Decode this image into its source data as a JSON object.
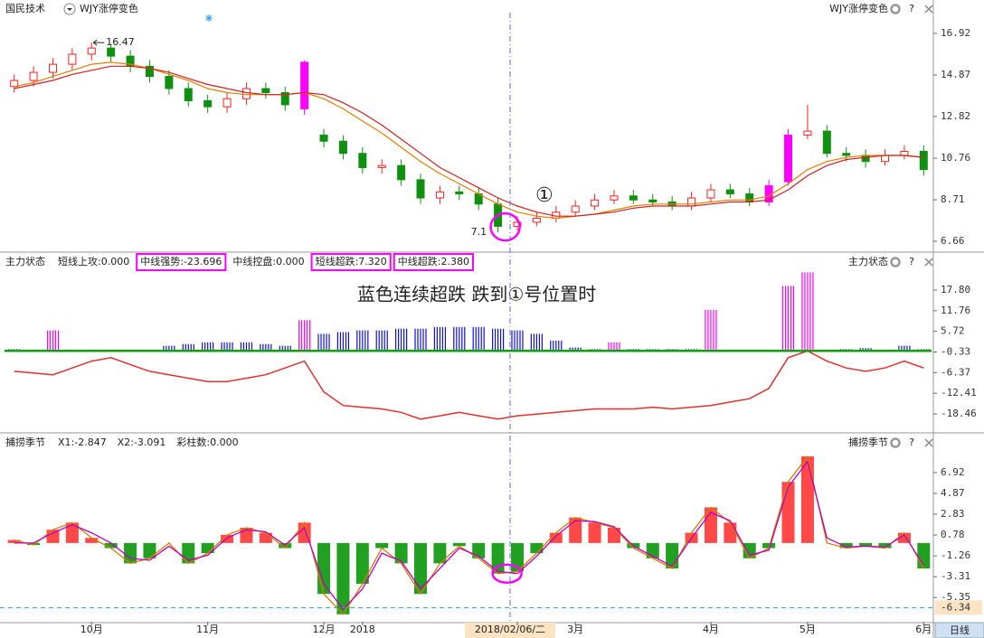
{
  "chart_data": [
    {
      "type": "candlestick",
      "title": "国民技术",
      "indicator": "WJY涨停变色",
      "categories": [
        null,
        null,
        null,
        null,
        "10月",
        null,
        null,
        null,
        null,
        null,
        "11月",
        null,
        null,
        null,
        null,
        null,
        "12月",
        null,
        "2018",
        null,
        null,
        null,
        null,
        null,
        null,
        null,
        "2018/02/06/二",
        null,
        null,
        "3月",
        null,
        null,
        null,
        null,
        null,
        null,
        "4月",
        null,
        null,
        null,
        null,
        "5月",
        null,
        null,
        null,
        null,
        null,
        "6月"
      ],
      "open": [
        14.3,
        14.6,
        15.0,
        15.4,
        15.9,
        16.2,
        15.8,
        15.3,
        14.8,
        14.2,
        13.6,
        13.3,
        13.7,
        14.2,
        14.0,
        13.2,
        11.9,
        11.6,
        11.0,
        10.3,
        10.4,
        9.7,
        8.8,
        9.1,
        9.0,
        8.5,
        7.4,
        7.6,
        7.8,
        8.1,
        8.4,
        8.7,
        8.9,
        8.7,
        8.6,
        8.4,
        8.8,
        9.2,
        9.0,
        8.6,
        9.6,
        11.9,
        12.1,
        11.0,
        10.9,
        10.6,
        10.9,
        11.1
      ],
      "high": [
        14.9,
        15.3,
        15.7,
        16.2,
        16.47,
        16.4,
        16.1,
        15.6,
        15.1,
        14.5,
        13.9,
        14.0,
        14.5,
        14.5,
        14.3,
        15.6,
        12.2,
        11.9,
        11.3,
        10.7,
        10.7,
        10.0,
        9.4,
        9.4,
        9.3,
        8.8,
        7.9,
        8.1,
        8.4,
        8.7,
        9.0,
        9.2,
        9.2,
        9.0,
        8.9,
        9.1,
        9.5,
        9.5,
        9.3,
        9.7,
        12.2,
        13.4,
        12.4,
        11.3,
        11.2,
        11.2,
        11.4,
        11.4
      ],
      "low": [
        14.0,
        14.3,
        14.7,
        15.1,
        15.6,
        15.5,
        15.0,
        14.5,
        13.9,
        13.3,
        13.0,
        13.0,
        13.4,
        13.7,
        13.1,
        12.9,
        11.3,
        10.7,
        10.0,
        10.0,
        9.4,
        8.5,
        8.5,
        8.7,
        8.2,
        7.1,
        7.2,
        7.4,
        7.6,
        7.9,
        8.2,
        8.5,
        8.5,
        8.4,
        8.2,
        8.2,
        8.6,
        8.8,
        8.4,
        8.4,
        9.4,
        11.7,
        10.8,
        10.6,
        10.3,
        10.4,
        10.7,
        9.9
      ],
      "close": [
        14.6,
        15.0,
        15.4,
        15.9,
        16.2,
        15.8,
        15.3,
        14.8,
        14.2,
        13.6,
        13.3,
        13.7,
        14.2,
        14.0,
        13.4,
        15.5,
        11.6,
        11.0,
        10.3,
        10.4,
        9.7,
        8.8,
        9.1,
        9.0,
        8.5,
        7.4,
        7.6,
        7.8,
        8.1,
        8.4,
        8.7,
        8.9,
        8.7,
        8.6,
        8.4,
        8.8,
        9.2,
        9.0,
        8.6,
        9.4,
        11.9,
        12.1,
        11.0,
        10.9,
        10.6,
        10.9,
        11.1,
        10.2
      ],
      "limit_up_indices": [
        15,
        39,
        40
      ],
      "up_color": "#ff2020",
      "down_color": "#109010",
      "limit_color": "#ff00ff",
      "series": [
        {
          "color": "#e08000",
          "values": [
            14.3,
            14.5,
            14.8,
            15.1,
            15.4,
            15.5,
            15.4,
            15.2,
            14.9,
            14.6,
            14.2,
            14.0,
            13.9,
            13.9,
            13.9,
            14.0,
            13.7,
            13.2,
            12.6,
            12.0,
            11.3,
            10.6,
            10.0,
            9.5,
            9.0,
            8.5,
            8.1,
            7.9,
            7.8,
            7.9,
            8.0,
            8.2,
            8.4,
            8.5,
            8.5,
            8.5,
            8.6,
            8.7,
            8.7,
            8.9,
            9.5,
            10.2,
            10.6,
            10.8,
            10.9,
            10.9,
            10.9,
            10.8
          ]
        },
        {
          "color": "#d02020",
          "values": [
            14.2,
            14.4,
            14.6,
            14.9,
            15.1,
            15.3,
            15.3,
            15.2,
            15.0,
            14.7,
            14.4,
            14.2,
            14.0,
            13.9,
            13.9,
            14.0,
            13.9,
            13.5,
            13.0,
            12.4,
            11.7,
            11.0,
            10.3,
            9.8,
            9.3,
            8.8,
            8.4,
            8.1,
            7.9,
            7.9,
            8.0,
            8.1,
            8.3,
            8.4,
            8.4,
            8.4,
            8.5,
            8.6,
            8.6,
            8.7,
            9.2,
            9.9,
            10.4,
            10.7,
            10.8,
            10.9,
            10.9,
            10.8
          ]
        }
      ],
      "ylim": [
        6.17,
        17.68
      ],
      "yticks": [
        16.92,
        14.87,
        12.82,
        10.76,
        8.71,
        6.66
      ],
      "annotations": [
        "16.47",
        "7.1",
        "①"
      ]
    },
    {
      "type": "indicator",
      "title": "主力状态",
      "legend": [
        {
          "text": "短线上攻:0.000",
          "color": "#e000e0",
          "boxed": false
        },
        {
          "text": "中线强势:-23.696",
          "color": "#e03030",
          "boxed": true
        },
        {
          "text": "中线控盘:0.000",
          "color": "#c08000",
          "boxed": false
        },
        {
          "text": "短线超跌:7.320",
          "color": "#0000d0",
          "boxed": true
        },
        {
          "text": "中线超跌:2.380",
          "color": "#10a010",
          "boxed": true
        }
      ],
      "series": [
        {
          "style": "bar",
          "color": "#1010e0",
          "values": [
            0.5,
            0.3,
            0,
            0.3,
            0.2,
            0,
            0,
            0.3,
            1.5,
            2,
            2.5,
            2.5,
            2.5,
            2,
            1.5,
            0,
            5,
            5.5,
            6,
            6,
            6.5,
            6.5,
            7,
            7,
            7,
            6.5,
            6,
            5,
            3,
            1,
            0.5,
            0.5,
            0.5,
            0.5,
            0.5,
            0.5,
            0,
            0,
            0,
            0,
            0,
            0,
            0,
            0.5,
            0.8,
            0.3,
            1.5,
            0.5
          ]
        },
        {
          "style": "bar",
          "color": "#ff00ff",
          "values": [
            null,
            null,
            6,
            null,
            null,
            null,
            null,
            null,
            null,
            null,
            null,
            null,
            null,
            null,
            null,
            9,
            null,
            null,
            null,
            null,
            null,
            null,
            null,
            null,
            null,
            null,
            null,
            null,
            null,
            null,
            null,
            2.5,
            null,
            null,
            null,
            null,
            12,
            null,
            null,
            null,
            19,
            23,
            null,
            null,
            null,
            null,
            null,
            null
          ]
        },
        {
          "style": "line",
          "color": "#e03030",
          "values": [
            -6,
            -6.5,
            -7,
            -5,
            -3,
            -2,
            -4,
            -6,
            -7,
            -8,
            -9,
            -9,
            -8,
            -7,
            -5,
            -3,
            -12,
            -16,
            -16.5,
            -17,
            -18,
            -20,
            -19,
            -18,
            -19,
            -20,
            -19,
            -18.5,
            -18,
            -17.5,
            -17,
            -17,
            -17,
            -16.5,
            -17,
            -16.5,
            -16,
            -15,
            -14,
            -11,
            -2,
            0,
            -3,
            -5,
            -6,
            -5,
            -3,
            -5
          ]
        }
      ],
      "ylim": [
        -23.75,
        23.36
      ],
      "yticks": [
        {
          "value": 17.8,
          "label": "17.80"
        },
        11.76,
        5.72,
        -0.33,
        -6.37,
        -12.41,
        -18.46
      ],
      "annotation": "蓝色连续超跌  跌到①号位置时"
    },
    {
      "type": "histogram",
      "title": "捕捞季节",
      "legend": [
        {
          "text": "X1:-2.847",
          "color": "#d08000",
          "boxed": false
        },
        {
          "text": "X2:-3.091",
          "color": "#c000c0",
          "boxed": false
        },
        {
          "text": "彩柱数:0.000",
          "color": "#10a010",
          "boxed": false
        }
      ],
      "pos_color": "#ff4848",
      "neg_color": "#22a022",
      "series": [
        {
          "color": "#d08000",
          "values": [
            0.3,
            -0.2,
            1.3,
            2.0,
            0.5,
            -0.5,
            -2,
            -1.5,
            0,
            -2,
            -1,
            0.8,
            1.5,
            1.0,
            -0.5,
            2.0,
            -5,
            -7,
            -4,
            -0.5,
            -2,
            -5,
            -2,
            -0.3,
            -1.5,
            -3,
            -2.8,
            -1,
            1.0,
            2.5,
            2.0,
            1.5,
            -0.5,
            -1.5,
            -2.5,
            1.0,
            3.5,
            2.0,
            -1.5,
            -0.5,
            6,
            8.5,
            0,
            -0.5,
            -0.3,
            -0.5,
            1.0,
            -2.5
          ]
        },
        {
          "color": "#c000c0",
          "values": [
            0,
            0,
            1,
            1.8,
            1,
            0,
            -1.5,
            -1.7,
            -0.3,
            -1.7,
            -1.2,
            0.5,
            1.3,
            1.1,
            -0.2,
            1.5,
            -4,
            -6.5,
            -4.5,
            -1,
            -1.8,
            -4.5,
            -2.5,
            -0.5,
            -1.3,
            -2.8,
            -3.0,
            -1.3,
            0.7,
            2.2,
            2.1,
            1.6,
            -0.3,
            -1.3,
            -2.3,
            0.5,
            3.0,
            2.2,
            -1.2,
            -0.7,
            5.5,
            8.0,
            0.5,
            -0.4,
            -0.3,
            -0.4,
            0.8,
            -2.2
          ]
        }
      ],
      "ylim": [
        -7.73,
        8.95
      ],
      "yticks": [
        6.92,
        4.87,
        2.83,
        0.78,
        -1.26,
        -3.31,
        -5.35
      ],
      "marker_line": -6.34
    }
  ],
  "ui": {
    "help": "?",
    "period_tab": "日线"
  }
}
